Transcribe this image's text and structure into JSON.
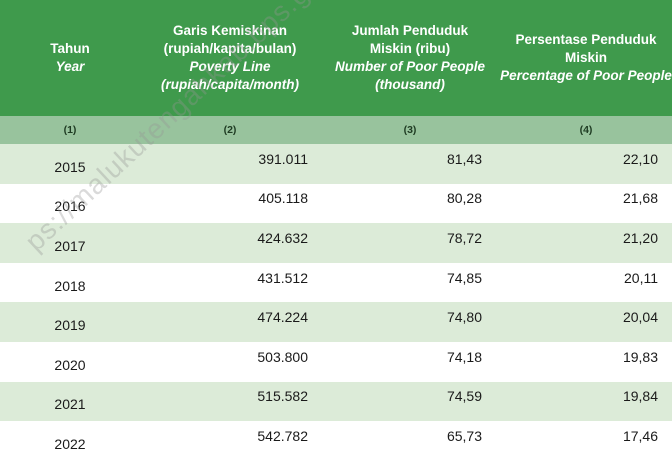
{
  "header": {
    "col1": {
      "id": "Tahun",
      "en": "Year"
    },
    "col2": {
      "id_line1": "Garis Kemiskinan",
      "id_line2": "(rupiah/kapita/bulan)",
      "en_line1": "Poverty Line",
      "en_line2": "(rupiah/capita/month)"
    },
    "col3": {
      "id_line1": "Jumlah Penduduk",
      "id_line2": "Miskin (ribu)",
      "en_line1": "Number of Poor People",
      "en_line2": "(thousand)"
    },
    "col4": {
      "id_line1": "Persentase Penduduk",
      "id_line2": "Miskin",
      "en_line1": "Percentage of Poor People"
    }
  },
  "column_numbers": [
    "(1)",
    "(2)",
    "(3)",
    "(4)"
  ],
  "rows": [
    {
      "year": "2015",
      "poverty_line": "391.011",
      "poor_people": "81,43",
      "percentage": "22,10"
    },
    {
      "year": "2016",
      "poverty_line": "405.118",
      "poor_people": "80,28",
      "percentage": "21,68"
    },
    {
      "year": "2017",
      "poverty_line": "424.632",
      "poor_people": "78,72",
      "percentage": "21,20"
    },
    {
      "year": "2018",
      "poverty_line": "431.512",
      "poor_people": "74,85",
      "percentage": "20,11"
    },
    {
      "year": "2019",
      "poverty_line": "474.224",
      "poor_people": "74,80",
      "percentage": "20,04"
    },
    {
      "year": "2020",
      "poverty_line": "503.800",
      "poor_people": "74,18",
      "percentage": "19,83"
    },
    {
      "year": "2021",
      "poverty_line": "515.582",
      "poor_people": "74,59",
      "percentage": "19,84"
    },
    {
      "year": "2022",
      "poverty_line": "542.782",
      "poor_people": "65,73",
      "percentage": "17,46"
    }
  ],
  "watermark": "ps://malukutengahkab.bps.go.id",
  "colors": {
    "header_bg": "#3f9a4c",
    "subheader_bg": "#98c39d",
    "row_alt_bg": "#dcebd8"
  }
}
